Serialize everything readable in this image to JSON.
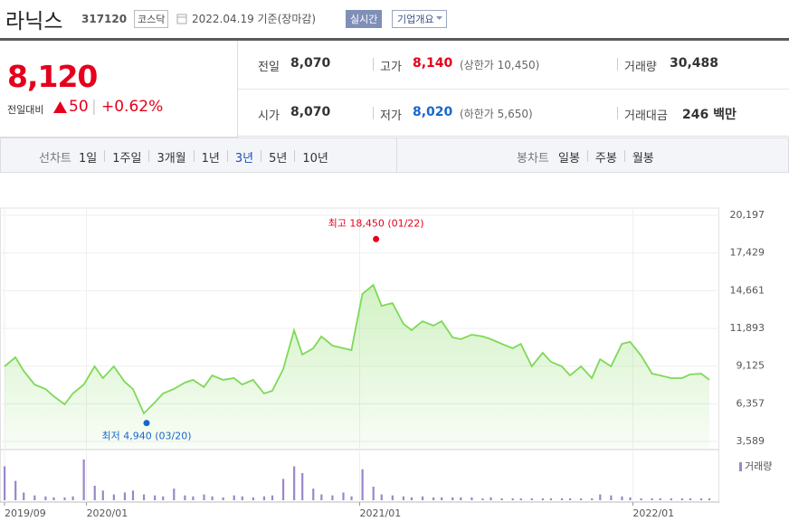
{
  "header": {
    "name": "라닉스",
    "code": "317120",
    "market": "코스닥",
    "date": "2022.04.19 기준(장마감)",
    "buttons": [
      "실시간",
      "기업개요"
    ]
  },
  "quote": {
    "price": "8,120",
    "change_label": "전일대비",
    "change": "50",
    "change_rate": "+0.62%",
    "stats": [
      {
        "label": "전일",
        "value": "8,070"
      },
      {
        "label": "고가",
        "value": "8,140",
        "note": "(상한가 10,450)",
        "color": "#e4001c"
      },
      {
        "label": "거래량",
        "value": "30,488"
      },
      {
        "label": "시가",
        "value": "8,070"
      },
      {
        "label": "저가",
        "value": "8,020",
        "note": "(하한가 5,650)",
        "color": "#1a66cc"
      },
      {
        "label": "거래대금",
        "value": "246 백만"
      }
    ]
  },
  "tabs": {
    "line_label": "선차트",
    "line": [
      "1일",
      "1주일",
      "3개월",
      "1년",
      "3년",
      "5년",
      "10년"
    ],
    "selected": 4,
    "candle_label": "봉차트",
    "candle": [
      "일봉",
      "주봉",
      "월봉"
    ]
  },
  "chart_data": {
    "type": "area",
    "color": "#7ed957",
    "x": [
      2019.7,
      2019.74,
      2019.77,
      2019.81,
      2019.85,
      2019.88,
      2019.92,
      2019.95,
      2019.99,
      2020.03,
      2020.06,
      2020.1,
      2020.14,
      2020.17,
      2020.21,
      2020.25,
      2020.28,
      2020.32,
      2020.36,
      2020.39,
      2020.43,
      2020.46,
      2020.5,
      2020.54,
      2020.57,
      2020.61,
      2020.65,
      2020.68,
      2020.72,
      2020.76,
      2020.79,
      2020.83,
      2020.86,
      2020.9,
      2020.94,
      2020.97,
      2021.01,
      2021.05,
      2021.08,
      2021.12,
      2021.16,
      2021.19,
      2021.23,
      2021.27,
      2021.3,
      2021.34,
      2021.37,
      2021.41,
      2021.45,
      2021.48,
      2021.52,
      2021.56,
      2021.59,
      2021.63,
      2021.67,
      2021.7,
      2021.74,
      2021.77,
      2021.81,
      2021.85,
      2021.88,
      2021.92,
      2021.96,
      2021.99,
      2022.03,
      2022.07,
      2022.1,
      2022.14,
      2022.18,
      2022.21,
      2022.25,
      2022.28
    ],
    "values": [
      9100,
      9770,
      8770,
      7770,
      7440,
      6910,
      6310,
      7110,
      7770,
      9100,
      8240,
      9100,
      7970,
      7440,
      5650,
      6450,
      7110,
      7440,
      7910,
      8110,
      7580,
      8440,
      8110,
      8240,
      7770,
      8110,
      7110,
      7310,
      8900,
      11760,
      9970,
      10430,
      11300,
      10630,
      10430,
      10300,
      14420,
      15080,
      13550,
      13750,
      12230,
      11760,
      12420,
      12090,
      12420,
      11230,
      11100,
      11430,
      11300,
      11100,
      10760,
      10430,
      10760,
      9100,
      10100,
      9440,
      9100,
      8440,
      9100,
      8240,
      9630,
      9100,
      10760,
      10900,
      9900,
      8570,
      8440,
      8240,
      8240,
      8510,
      8570,
      8120
    ],
    "xlim": [
      2019.7,
      2022.3
    ],
    "xticks": [
      {
        "value": 2019.7,
        "label": "2019/09"
      },
      {
        "value": 2020.0,
        "label": "2020/01"
      },
      {
        "value": 2021.0,
        "label": "2021/01"
      },
      {
        "value": 2022.0,
        "label": "2022/01"
      }
    ],
    "ylim": [
      3589,
      20197
    ],
    "yticks": [
      {
        "value": 20197,
        "label": "20,197"
      },
      {
        "value": 17429,
        "label": "17,429"
      },
      {
        "value": 14661,
        "label": "14,661"
      },
      {
        "value": 11893,
        "label": "11,893"
      },
      {
        "value": 9125,
        "label": "9,125"
      },
      {
        "value": 6357,
        "label": "6,357"
      },
      {
        "value": 3589,
        "label": "3,589"
      }
    ],
    "grid": true,
    "annotations": [
      {
        "label": "최고 18,450 (01/22)",
        "value": 18450,
        "x": 2021.06,
        "color": "#e4001c"
      },
      {
        "label": "최저 4,940 (03/20)",
        "value": 4940,
        "x": 2020.22,
        "color": "#1a66cc"
      }
    ],
    "volume": {
      "label": "거래량",
      "color": "#9c86c9",
      "values": [
        35,
        20,
        8,
        5,
        4,
        3,
        3,
        4,
        42,
        15,
        10,
        6,
        8,
        10,
        6,
        5,
        4,
        12,
        5,
        4,
        6,
        4,
        3,
        5,
        4,
        3,
        4,
        5,
        22,
        35,
        28,
        12,
        6,
        5,
        8,
        4,
        32,
        14,
        6,
        5,
        4,
        3,
        4,
        3,
        3,
        3,
        3,
        3,
        2,
        3,
        2,
        2,
        2,
        2,
        2,
        2,
        2,
        2,
        2,
        2,
        6,
        5,
        4,
        3,
        2,
        2,
        2,
        2,
        2,
        2,
        2,
        2
      ]
    }
  }
}
